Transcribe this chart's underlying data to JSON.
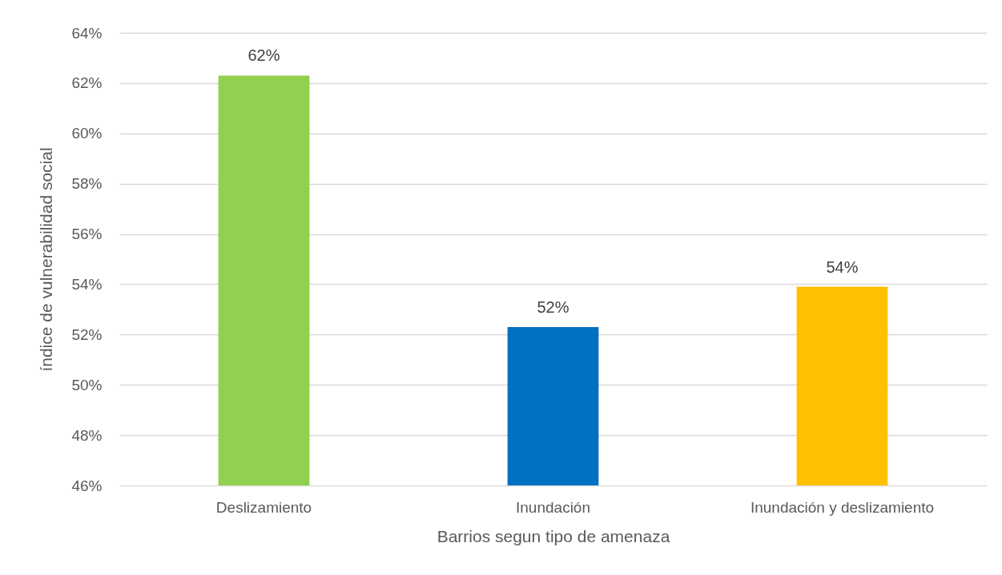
{
  "chart_data": {
    "type": "bar",
    "xlabel": "Barrios segun tipo de amenaza",
    "ylabel": "índice de vulnerabilidad social",
    "categories": [
      "Deslizamiento",
      "Inundación",
      "Inundación y deslizamiento"
    ],
    "values": [
      62.3,
      52.3,
      53.9
    ],
    "colors": [
      "#92d050",
      "#0070c0",
      "#ffc000"
    ],
    "value_labels": [
      "62%",
      "52%",
      "54%"
    ],
    "ylim": [
      46,
      64
    ],
    "yticks": [
      {
        "value": 46,
        "label": "46%"
      },
      {
        "value": 48,
        "label": "48%"
      },
      {
        "value": 50,
        "label": "50%"
      },
      {
        "value": 52,
        "label": "52%"
      },
      {
        "value": 54,
        "label": "54%"
      },
      {
        "value": 56,
        "label": "56%"
      },
      {
        "value": 58,
        "label": "58%"
      },
      {
        "value": 60,
        "label": "60%"
      },
      {
        "value": 62,
        "label": "62%"
      },
      {
        "value": 64,
        "label": "64%"
      }
    ],
    "grid": "y"
  }
}
